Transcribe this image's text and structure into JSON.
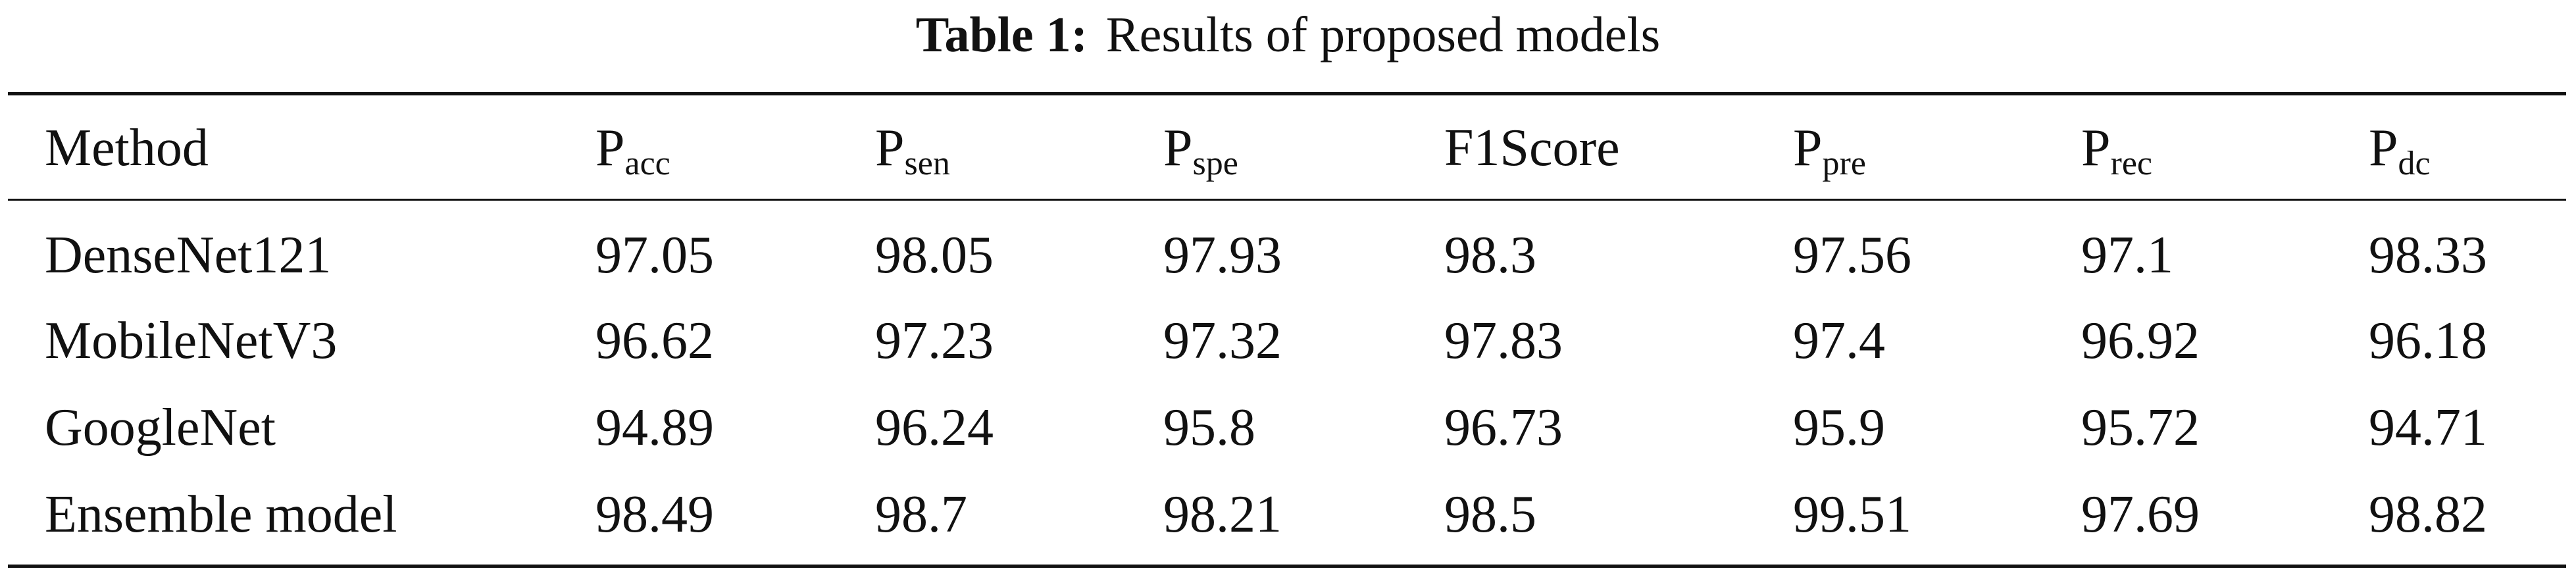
{
  "caption": {
    "label": "Table 1:",
    "title": "Results of proposed models"
  },
  "table": {
    "header": [
      "Method",
      {
        "main": "P",
        "sub": "acc"
      },
      {
        "main": "P",
        "sub": "sen"
      },
      {
        "main": "P",
        "sub": "spe"
      },
      "F1Score",
      {
        "main": "P",
        "sub": "pre"
      },
      {
        "main": "P",
        "sub": "rec"
      },
      {
        "main": "P",
        "sub": "dc"
      }
    ],
    "rows": [
      [
        "DenseNet121",
        97.05,
        98.05,
        97.93,
        98.3,
        97.56,
        97.1,
        98.33
      ],
      [
        "MobileNetV3",
        96.62,
        97.23,
        97.32,
        97.83,
        97.4,
        96.92,
        96.18
      ],
      [
        "GoogleNet",
        94.89,
        96.24,
        95.8,
        96.73,
        95.9,
        95.72,
        94.71
      ],
      [
        "Ensemble model",
        98.49,
        98.7,
        98.21,
        98.5,
        99.51,
        97.69,
        98.82
      ]
    ]
  }
}
